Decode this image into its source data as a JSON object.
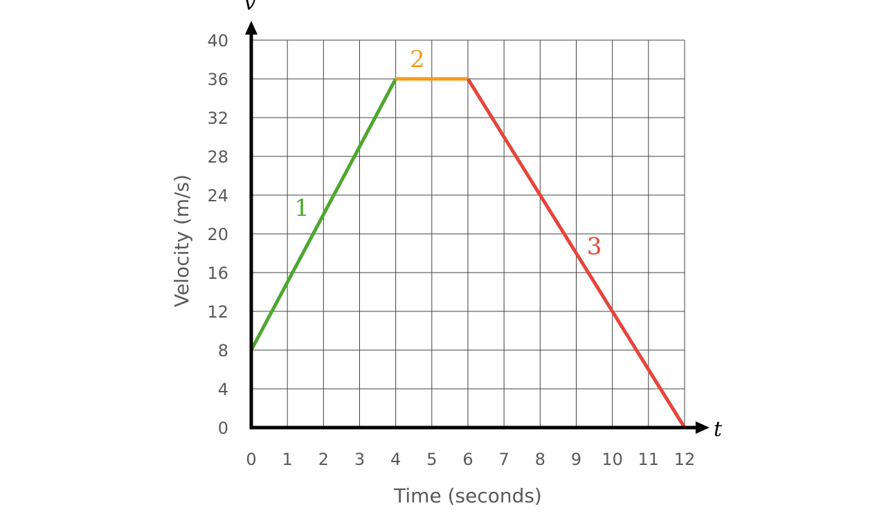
{
  "chart_data": {
    "type": "line",
    "xlabel": "Time (seconds)",
    "ylabel": "Velocity (m/s)",
    "x_axis_symbol": "t",
    "y_axis_symbol": "v",
    "xlim": [
      0,
      12
    ],
    "ylim": [
      0,
      40
    ],
    "x_ticks": [
      0,
      1,
      2,
      3,
      4,
      5,
      6,
      7,
      8,
      9,
      10,
      11,
      12
    ],
    "y_ticks": [
      0,
      4,
      8,
      12,
      16,
      20,
      24,
      28,
      32,
      36,
      40
    ],
    "grid": true,
    "series": [
      {
        "name": "1",
        "color": "#4ea72e",
        "x": [
          0,
          4
        ],
        "y": [
          8,
          36
        ]
      },
      {
        "name": "2",
        "color": "#f59c1a",
        "x": [
          4,
          6
        ],
        "y": [
          36,
          36
        ]
      },
      {
        "name": "3",
        "color": "#e8443a",
        "x": [
          6,
          12
        ],
        "y": [
          36,
          0
        ]
      }
    ]
  }
}
